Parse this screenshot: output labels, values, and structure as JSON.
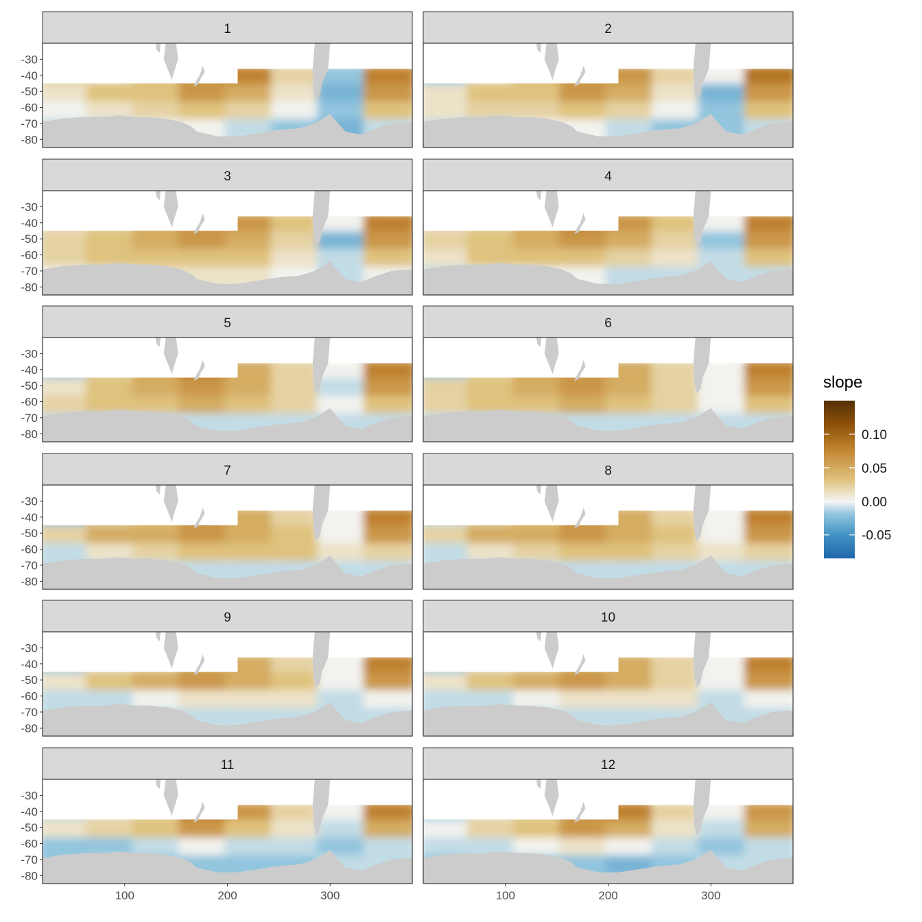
{
  "chart_data": {
    "type": "heatmap",
    "facet_variable": "month",
    "panels": [
      {
        "label": "1",
        "pattern": [
          [
            0.02,
            0.01,
            0.03,
            0.05,
            0.06,
            0.02,
            -0.02,
            0.06
          ],
          [
            0.01,
            0.03,
            0.03,
            0.05,
            0.04,
            0.01,
            -0.03,
            0.05
          ],
          [
            0.0,
            0.01,
            0.02,
            0.03,
            0.02,
            0.0,
            -0.02,
            0.03
          ],
          [
            -0.01,
            -0.01,
            0.0,
            0.0,
            -0.01,
            -0.02,
            -0.03,
            -0.01
          ]
        ]
      },
      {
        "label": "2",
        "pattern": [
          [
            -0.02,
            0.01,
            0.03,
            0.05,
            0.05,
            0.02,
            0.0,
            0.07
          ],
          [
            0.01,
            0.03,
            0.03,
            0.05,
            0.04,
            0.01,
            -0.03,
            0.05
          ],
          [
            0.01,
            0.02,
            0.02,
            0.03,
            0.02,
            0.0,
            -0.02,
            0.03
          ],
          [
            -0.01,
            -0.01,
            0.0,
            0.0,
            -0.01,
            -0.02,
            -0.02,
            -0.01
          ]
        ]
      },
      {
        "label": "3",
        "pattern": [
          [
            0.01,
            0.02,
            0.04,
            0.05,
            0.05,
            0.03,
            0.0,
            0.06
          ],
          [
            0.02,
            0.03,
            0.04,
            0.05,
            0.04,
            0.02,
            -0.03,
            0.05
          ],
          [
            0.02,
            0.03,
            0.03,
            0.03,
            0.03,
            0.01,
            -0.01,
            0.03
          ],
          [
            0.0,
            0.0,
            0.01,
            0.01,
            0.01,
            0.0,
            -0.01,
            0.0
          ]
        ]
      },
      {
        "label": "4",
        "pattern": [
          [
            0.01,
            0.02,
            0.04,
            0.06,
            0.05,
            0.03,
            0.0,
            0.06
          ],
          [
            0.02,
            0.03,
            0.04,
            0.05,
            0.04,
            0.02,
            -0.02,
            0.05
          ],
          [
            0.01,
            0.03,
            0.03,
            0.03,
            0.02,
            0.01,
            -0.01,
            0.03
          ],
          [
            -0.01,
            0.0,
            0.0,
            0.0,
            -0.01,
            -0.01,
            -0.01,
            -0.01
          ]
        ]
      },
      {
        "label": "5",
        "pattern": [
          [
            -0.02,
            0.02,
            0.04,
            0.06,
            0.04,
            0.02,
            0.0,
            0.06
          ],
          [
            0.01,
            0.03,
            0.04,
            0.05,
            0.04,
            0.02,
            -0.01,
            0.05
          ],
          [
            0.02,
            0.03,
            0.03,
            0.04,
            0.03,
            0.02,
            0.0,
            0.03
          ],
          [
            -0.01,
            -0.01,
            -0.01,
            -0.01,
            -0.01,
            -0.01,
            -0.01,
            -0.01
          ]
        ]
      },
      {
        "label": "6",
        "pattern": [
          [
            -0.02,
            0.02,
            0.04,
            0.05,
            0.04,
            0.02,
            0.0,
            0.06
          ],
          [
            0.02,
            0.03,
            0.04,
            0.05,
            0.04,
            0.02,
            0.0,
            0.05
          ],
          [
            0.02,
            0.03,
            0.03,
            0.04,
            0.03,
            0.02,
            0.0,
            0.03
          ],
          [
            -0.01,
            -0.01,
            -0.01,
            -0.01,
            -0.01,
            -0.01,
            -0.01,
            -0.01
          ]
        ]
      },
      {
        "label": "7",
        "pattern": [
          [
            -0.02,
            0.02,
            0.03,
            0.05,
            0.04,
            0.02,
            0.0,
            0.06
          ],
          [
            0.02,
            0.04,
            0.04,
            0.05,
            0.04,
            0.03,
            0.0,
            0.05
          ],
          [
            -0.01,
            0.01,
            0.02,
            0.03,
            0.03,
            0.03,
            0.01,
            0.02
          ],
          [
            -0.01,
            -0.01,
            -0.01,
            -0.01,
            -0.01,
            -0.01,
            -0.01,
            -0.01
          ]
        ]
      },
      {
        "label": "8",
        "pattern": [
          [
            -0.01,
            0.02,
            0.03,
            0.05,
            0.04,
            0.02,
            0.0,
            0.06
          ],
          [
            0.02,
            0.04,
            0.04,
            0.05,
            0.04,
            0.03,
            0.0,
            0.05
          ],
          [
            -0.01,
            0.01,
            0.02,
            0.03,
            0.03,
            0.02,
            0.01,
            0.02
          ],
          [
            -0.01,
            -0.01,
            -0.01,
            -0.01,
            -0.01,
            -0.01,
            -0.01,
            -0.01
          ]
        ]
      },
      {
        "label": "9",
        "pattern": [
          [
            -0.02,
            0.01,
            0.02,
            0.04,
            0.04,
            0.02,
            0.0,
            0.06
          ],
          [
            0.01,
            0.03,
            0.04,
            0.05,
            0.04,
            0.03,
            0.0,
            0.05
          ],
          [
            -0.01,
            -0.01,
            0.0,
            0.01,
            0.01,
            0.01,
            -0.01,
            0.0
          ],
          [
            -0.01,
            -0.01,
            -0.01,
            -0.01,
            -0.01,
            -0.01,
            -0.01,
            -0.01
          ]
        ]
      },
      {
        "label": "10",
        "pattern": [
          [
            -0.02,
            0.01,
            0.02,
            0.04,
            0.04,
            0.02,
            0.0,
            0.06
          ],
          [
            0.01,
            0.03,
            0.04,
            0.05,
            0.04,
            0.02,
            0.0,
            0.05
          ],
          [
            -0.01,
            -0.01,
            0.0,
            0.01,
            0.01,
            0.01,
            -0.01,
            0.0
          ],
          [
            -0.01,
            -0.01,
            -0.01,
            -0.01,
            -0.01,
            -0.01,
            -0.01,
            -0.01
          ]
        ]
      },
      {
        "label": "11",
        "pattern": [
          [
            -0.01,
            0.01,
            0.02,
            0.06,
            0.05,
            0.02,
            0.0,
            0.06
          ],
          [
            0.01,
            0.02,
            0.03,
            0.05,
            0.03,
            0.01,
            -0.01,
            0.04
          ],
          [
            -0.02,
            -0.02,
            -0.01,
            0.0,
            -0.01,
            -0.01,
            -0.02,
            -0.01
          ],
          [
            -0.02,
            -0.01,
            -0.02,
            -0.02,
            -0.02,
            -0.02,
            -0.01,
            -0.01
          ]
        ]
      },
      {
        "label": "12",
        "pattern": [
          [
            -0.02,
            0.01,
            0.02,
            0.05,
            0.06,
            0.02,
            0.0,
            0.05
          ],
          [
            0.0,
            0.02,
            0.03,
            0.05,
            0.04,
            0.01,
            -0.01,
            0.04
          ],
          [
            -0.01,
            -0.01,
            0.0,
            0.01,
            0.0,
            -0.01,
            -0.02,
            -0.01
          ],
          [
            -0.02,
            -0.01,
            -0.02,
            -0.02,
            -0.03,
            -0.02,
            -0.01,
            -0.01
          ]
        ]
      }
    ],
    "xlabel": "",
    "ylabel": "",
    "xlim": [
      20,
      380
    ],
    "ylim": [
      -85,
      -20
    ],
    "x_ticks": [
      100,
      200,
      300
    ],
    "y_ticks": [
      -30,
      -40,
      -50,
      -60,
      -70,
      -80
    ],
    "legend": {
      "title": "slope",
      "placement": "right",
      "ticks": [
        0.1,
        0.05,
        0.0,
        -0.05
      ],
      "tick_labels": [
        "0.10",
        "0.05",
        "0.00",
        "-0.05"
      ],
      "range": [
        -0.085,
        0.15
      ],
      "colors": [
        "#01665e",
        "#2166ac",
        "#4393c3",
        "#92c5de",
        "#f7f7f7",
        "#dfc27d",
        "#bf812d",
        "#8c510a",
        "#543005"
      ]
    },
    "grid": true,
    "land_color": "#cccccc",
    "panel_border_color": "#333333",
    "strip_fill": "#d9d9d9"
  }
}
